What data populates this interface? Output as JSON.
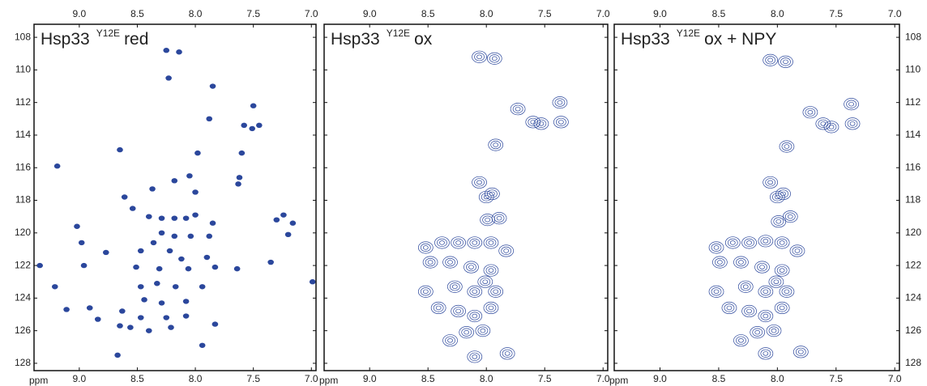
{
  "chart_data": [
    {
      "type": "scatter",
      "title": "Hsp33",
      "title_superscript": "Y12E",
      "title_suffix": "red",
      "xlabel": "ppm",
      "style": "filled",
      "color": "#2b479c",
      "yaxis_labels": "left",
      "xlim": [
        9.39,
        6.96
      ],
      "ylim": [
        107.2,
        128.45
      ],
      "xticks": [
        {
          "value": 9,
          "label": "9.0"
        },
        8.5,
        {
          "value": 8,
          "label": "8.0"
        },
        7.5,
        {
          "value": 7,
          "label": "7.0"
        }
      ],
      "yticks": [
        108,
        110,
        112,
        114,
        116,
        118,
        120,
        122,
        124,
        126,
        128
      ],
      "x": [
        8.25,
        8.14,
        8.23,
        7.85,
        7.88,
        7.5,
        7.58,
        7.51,
        7.45,
        7.98,
        7.6,
        8.65,
        9.19,
        8.05,
        7.62,
        8.18,
        7.63,
        8.37,
        8.0,
        7.24,
        8.61,
        8.54,
        8.29,
        8.18,
        8.08,
        8.4,
        8.0,
        7.85,
        7.3,
        7.16,
        7.2,
        9.02,
        8.29,
        8.18,
        8.04,
        7.88,
        8.36,
        8.22,
        8.12,
        8.47,
        8.98,
        8.77,
        9.34,
        8.96,
        8.51,
        8.31,
        8.06,
        7.9,
        7.83,
        7.64,
        7.35,
        8.47,
        8.33,
        8.17,
        7.94,
        9.21,
        8.44,
        8.29,
        8.08,
        6.99,
        8.63,
        8.47,
        8.25,
        8.08,
        9.11,
        8.91,
        8.84,
        8.4,
        8.21,
        7.83,
        8.65,
        8.56,
        7.94,
        8.67
      ],
      "y": [
        108.8,
        108.9,
        110.5,
        111.0,
        113.0,
        112.2,
        113.4,
        113.6,
        113.4,
        115.1,
        115.1,
        114.9,
        115.9,
        116.5,
        116.6,
        116.8,
        117.0,
        117.3,
        117.5,
        118.9,
        117.8,
        118.5,
        119.1,
        119.1,
        119.1,
        119.0,
        118.9,
        119.4,
        119.2,
        119.4,
        120.1,
        119.6,
        120.0,
        120.2,
        120.2,
        120.2,
        120.6,
        121.1,
        121.6,
        121.1,
        120.6,
        121.2,
        122.0,
        122.0,
        122.1,
        122.2,
        122.2,
        121.5,
        122.1,
        122.2,
        121.8,
        123.3,
        123.1,
        123.3,
        123.3,
        123.3,
        124.1,
        124.3,
        124.2,
        123.0,
        124.8,
        125.2,
        125.2,
        125.1,
        124.7,
        124.6,
        125.3,
        126.0,
        125.8,
        125.6,
        125.7,
        125.8,
        126.9,
        127.5
      ]
    },
    {
      "type": "scatter",
      "title": "Hsp33",
      "title_superscript": "Y12E",
      "title_suffix": "ox",
      "xlabel": "ppm",
      "style": "contour",
      "color": "#2b479c",
      "yaxis_labels": "none",
      "xlim": [
        9.39,
        6.96
      ],
      "ylim": [
        107.2,
        128.45
      ],
      "xticks": [
        {
          "value": 9,
          "label": "9.0"
        },
        8.5,
        {
          "value": 8,
          "label": "8.0"
        },
        7.5,
        {
          "value": 7,
          "label": "7.0"
        }
      ],
      "yticks": [
        108,
        110,
        112,
        114,
        116,
        118,
        120,
        122,
        124,
        126,
        128
      ],
      "x": [
        8.06,
        7.93,
        7.73,
        7.37,
        7.53,
        7.36,
        7.6,
        7.92,
        7.95,
        8.0,
        8.06,
        7.99,
        8.38,
        8.24,
        8.1,
        7.96,
        7.89,
        8.48,
        8.31,
        8.13,
        7.96,
        8.27,
        8.1,
        7.92,
        8.24,
        8.1,
        7.96,
        8.17,
        8.03,
        8.31,
        8.1,
        7.82,
        8.52,
        8.41,
        8.01,
        7.83,
        8.52
      ],
      "y": [
        109.2,
        109.3,
        112.4,
        112.0,
        113.3,
        113.2,
        113.2,
        114.6,
        117.6,
        117.8,
        116.9,
        119.2,
        120.6,
        120.6,
        120.6,
        120.6,
        119.1,
        121.8,
        121.8,
        122.1,
        122.3,
        123.3,
        123.6,
        123.6,
        124.8,
        125.1,
        124.6,
        126.1,
        126.0,
        126.6,
        127.6,
        127.4,
        123.6,
        124.6,
        123.0,
        121.1,
        120.9
      ]
    },
    {
      "type": "scatter",
      "title": "Hsp33",
      "title_superscript": "Y12E",
      "title_suffix": "ox + NPY",
      "xlabel": "ppm",
      "style": "contour",
      "color": "#2b479c",
      "yaxis_labels": "right",
      "xlim": [
        9.39,
        6.96
      ],
      "ylim": [
        107.2,
        128.45
      ],
      "xticks": [
        {
          "value": 9,
          "label": "9.0"
        },
        8.5,
        {
          "value": 8,
          "label": "8.0"
        },
        7.5,
        {
          "value": 7,
          "label": "7.0"
        }
      ],
      "yticks": [
        108,
        110,
        112,
        114,
        116,
        118,
        120,
        122,
        124,
        126,
        128
      ],
      "x": [
        8.06,
        7.93,
        7.72,
        7.37,
        7.54,
        7.36,
        7.61,
        7.92,
        7.95,
        8.0,
        8.06,
        7.99,
        8.38,
        8.24,
        8.1,
        7.96,
        7.89,
        8.49,
        8.31,
        8.13,
        7.96,
        8.27,
        8.1,
        7.92,
        8.24,
        8.1,
        7.96,
        8.17,
        8.03,
        8.31,
        8.1,
        7.8,
        8.52,
        8.41,
        8.01,
        7.83,
        8.52
      ],
      "y": [
        109.4,
        109.5,
        112.6,
        112.1,
        113.5,
        113.3,
        113.3,
        114.7,
        117.6,
        117.8,
        116.9,
        119.3,
        120.6,
        120.6,
        120.5,
        120.6,
        119.0,
        121.8,
        121.8,
        122.1,
        122.3,
        123.3,
        123.6,
        123.6,
        124.8,
        125.1,
        124.6,
        126.1,
        126.0,
        126.6,
        127.4,
        127.3,
        123.6,
        124.6,
        123.0,
        121.1,
        120.9
      ]
    }
  ]
}
